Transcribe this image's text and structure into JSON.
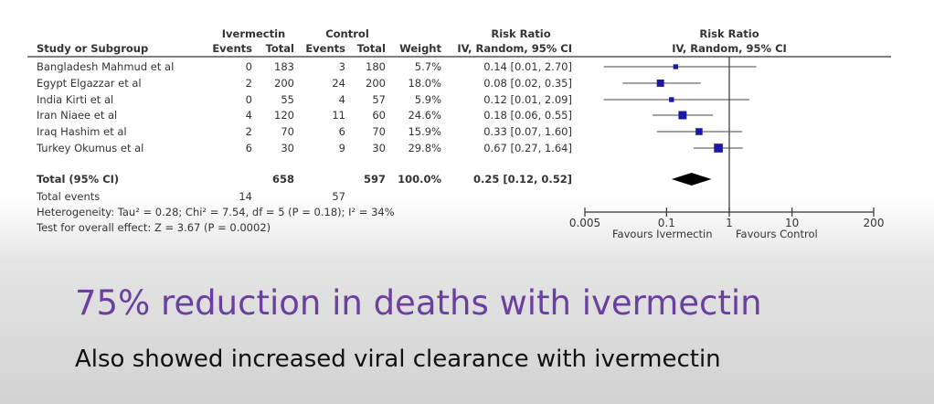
{
  "chart_data": {
    "type": "forest",
    "headers": {
      "group1": "Ivermectin",
      "group2": "Control",
      "study": "Study or Subgroup",
      "events": "Events",
      "total": "Total",
      "weight": "Weight",
      "rr_title": "Risk Ratio",
      "rr_method": "IV, Random, 95% CI",
      "plot_title": "Risk Ratio",
      "plot_method": "IV, Random, 95% CI"
    },
    "studies": [
      {
        "name": "Bangladesh Mahmud et al",
        "e1": "0",
        "n1": "183",
        "e2": "3",
        "n2": "180",
        "weight": "5.7%",
        "rr_text": "0.14 [0.01, 2.70]",
        "rr": 0.14,
        "lo": 0.01,
        "hi": 2.7,
        "w": 5.7
      },
      {
        "name": "Egypt Elgazzar et al",
        "e1": "2",
        "n1": "200",
        "e2": "24",
        "n2": "200",
        "weight": "18.0%",
        "rr_text": "0.08 [0.02, 0.35]",
        "rr": 0.08,
        "lo": 0.02,
        "hi": 0.35,
        "w": 18.0
      },
      {
        "name": "India Kirti et al",
        "e1": "0",
        "n1": "55",
        "e2": "4",
        "n2": "57",
        "weight": "5.9%",
        "rr_text": "0.12 [0.01, 2.09]",
        "rr": 0.12,
        "lo": 0.01,
        "hi": 2.09,
        "w": 5.9
      },
      {
        "name": "Iran Niaee et al",
        "e1": "4",
        "n1": "120",
        "e2": "11",
        "n2": "60",
        "weight": "24.6%",
        "rr_text": "0.18 [0.06, 0.55]",
        "rr": 0.18,
        "lo": 0.06,
        "hi": 0.55,
        "w": 24.6
      },
      {
        "name": "Iraq Hashim et al",
        "e1": "2",
        "n1": "70",
        "e2": "6",
        "n2": "70",
        "weight": "15.9%",
        "rr_text": "0.33 [0.07, 1.60]",
        "rr": 0.33,
        "lo": 0.07,
        "hi": 1.6,
        "w": 15.9
      },
      {
        "name": "Turkey Okumus et al",
        "e1": "6",
        "n1": "30",
        "e2": "9",
        "n2": "30",
        "weight": "29.8%",
        "rr_text": "0.67 [0.27, 1.64]",
        "rr": 0.67,
        "lo": 0.27,
        "hi": 1.64,
        "w": 29.8
      }
    ],
    "total": {
      "name": "Total (95% CI)",
      "n1": "658",
      "n2": "597",
      "weight": "100.0%",
      "rr_text": "0.25 [0.12, 0.52]",
      "rr": 0.25,
      "lo": 0.12,
      "hi": 0.52
    },
    "total_events": {
      "label": "Total events",
      "e1": "14",
      "e2": "57"
    },
    "heterogeneity": "Heterogeneity: Tau² = 0.28; Chi² = 7.54, df = 5 (P = 0.18); I² = 34%",
    "overall_effect": "Test for overall effect: Z = 3.67 (P = 0.0002)",
    "x_axis": {
      "scale": "log",
      "range": [
        0.005,
        200
      ],
      "ticks": [
        0.005,
        0.1,
        1,
        10,
        200
      ],
      "tick_labels": [
        "0.005",
        "0.1",
        "1",
        "10",
        "200"
      ]
    },
    "favours_left": "Favours Ivermectin",
    "favours_right": "Favours Control",
    "colors": {
      "square": "#1a1aa8",
      "diamond": "#000000"
    }
  },
  "slide": {
    "headline": "75% reduction in deaths with ivermectin",
    "subline": "Also showed increased viral clearance with ivermectin"
  }
}
